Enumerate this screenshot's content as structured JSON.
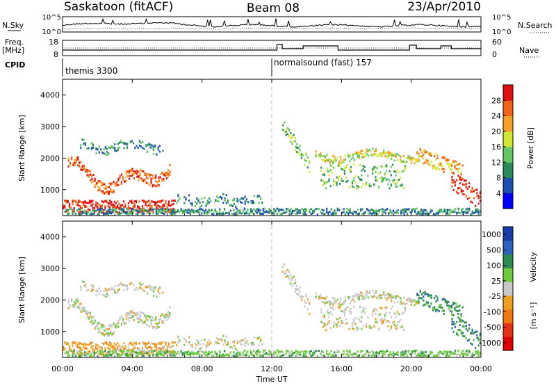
{
  "header": {
    "station": "Saskatoon (fitACF)",
    "beam": "Beam 08",
    "date": "23/Apr/2010"
  },
  "colors": {
    "power_scale": [
      "#0000ff",
      "#1e50b4",
      "#2b8c5a",
      "#64c864",
      "#d2e632",
      "#f5a028",
      "#f06418",
      "#e01010"
    ],
    "velocity_scale": [
      "#1a3ca8",
      "#2b62be",
      "#2a8a50",
      "#6ccc3c",
      "#c8c8c8",
      "#f0a020",
      "#f07810",
      "#e83218",
      "#e00000"
    ]
  },
  "chart_data": [
    {
      "type": "line",
      "name_panel": "nsky-nsearch",
      "left_label": "N.Sky",
      "right_label": "N.Search",
      "left_ticks": [
        "10^5",
        "10^0"
      ],
      "right_ticks": [
        "10^5",
        "10^0"
      ]
    },
    {
      "type": "line",
      "name_panel": "freq-nave",
      "left_label": "Freq.",
      "left_unit": "[MHz]",
      "right_label": "Nave",
      "left_ticks": [
        "18",
        "8"
      ],
      "right_ticks": [
        "60",
        "0"
      ],
      "cpid_label": "CPID",
      "modes": [
        {
          "label": "themis 3300",
          "start_hour": 0
        },
        {
          "label": "normalsound (fast) 157",
          "start_hour": 12
        }
      ]
    },
    {
      "type": "heatmap",
      "name_panel": "power",
      "ylabel": "Slant Range [km]",
      "ylim": [
        180,
        4500
      ],
      "yticks": [
        1000,
        2000,
        3000,
        4000
      ],
      "colorbar_label": "Power [dB]",
      "colorbar_ticks": [
        "4",
        "8",
        "12",
        "16",
        "20",
        "24",
        "28"
      ]
    },
    {
      "type": "heatmap",
      "name_panel": "velocity",
      "ylabel": "Slant Range [km]",
      "ylim": [
        180,
        4500
      ],
      "yticks": [
        1000,
        2000,
        3000,
        4000
      ],
      "colorbar_label": "Velocity",
      "colorbar_unit": "[m s⁻¹]",
      "colorbar_ticks": [
        "1000",
        "500",
        "100",
        "25",
        "-25",
        "-100",
        "-500",
        "-1000"
      ]
    }
  ],
  "xaxis": {
    "xlabel": "Time UT",
    "xlim_hours": [
      0,
      24
    ],
    "tick_labels": [
      "00:00",
      "04:00",
      "08:00",
      "12:00",
      "16:00",
      "20:00",
      "00:00"
    ],
    "tick_hours": [
      0,
      4,
      8,
      12,
      16,
      20,
      24
    ]
  }
}
